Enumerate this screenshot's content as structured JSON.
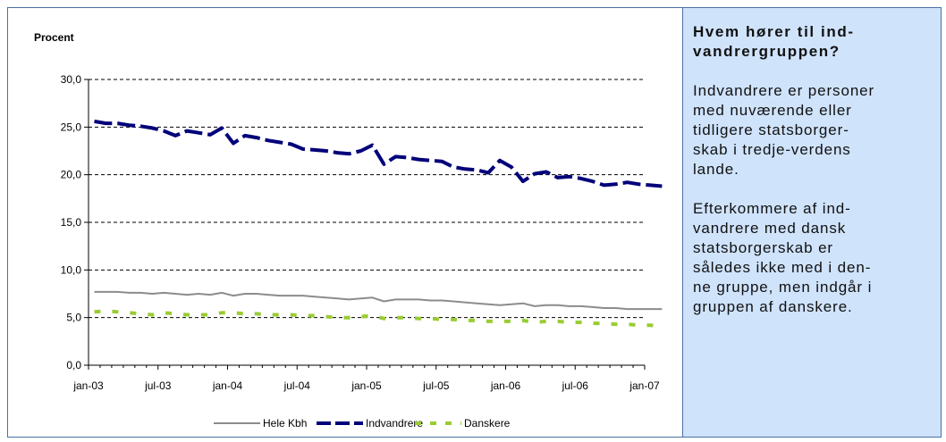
{
  "chart_data": {
    "type": "line",
    "ylabel": "Procent",
    "ylim": [
      0,
      30
    ],
    "y_ticks": [
      "0,0",
      "5,0",
      "10,0",
      "15,0",
      "20,0",
      "25,0",
      "30,0"
    ],
    "x_ticks": [
      "jan-03",
      "jul-03",
      "jan-04",
      "jul-04",
      "jan-05",
      "jul-05",
      "jan-06",
      "jul-06",
      "jan-07"
    ],
    "x_start": "2003-01",
    "grid": "horizontal-dashed",
    "legend_position": "bottom",
    "series": [
      {
        "name": "Hele Kbh",
        "color": "#8c8c8c",
        "style": "solid",
        "values": [
          7.7,
          7.7,
          7.7,
          7.6,
          7.6,
          7.5,
          7.6,
          7.5,
          7.4,
          7.5,
          7.4,
          7.6,
          7.3,
          7.5,
          7.5,
          7.4,
          7.3,
          7.3,
          7.3,
          7.2,
          7.1,
          7.0,
          6.9,
          7.0,
          7.1,
          6.7,
          6.9,
          6.9,
          6.9,
          6.8,
          6.8,
          6.7,
          6.6,
          6.5,
          6.4,
          6.3,
          6.4,
          6.5,
          6.2,
          6.3,
          6.3,
          6.2,
          6.2,
          6.1,
          6.0,
          6.0,
          5.9,
          5.9,
          5.9,
          5.9
        ]
      },
      {
        "name": "Indvandrere",
        "color": "#00007a",
        "style": "dashed",
        "values": [
          25.6,
          25.4,
          25.4,
          25.2,
          25.1,
          24.9,
          24.6,
          24.1,
          24.6,
          24.4,
          24.2,
          24.9,
          23.3,
          24.1,
          23.9,
          23.6,
          23.4,
          23.2,
          22.7,
          22.6,
          22.5,
          22.3,
          22.2,
          22.5,
          23.1,
          21.1,
          21.9,
          21.8,
          21.6,
          21.5,
          21.4,
          20.8,
          20.6,
          20.5,
          20.2,
          21.5,
          20.8,
          19.3,
          20.1,
          20.3,
          19.7,
          19.8,
          19.6,
          19.3,
          18.9,
          19.0,
          19.2,
          19.0,
          18.9,
          18.8
        ]
      },
      {
        "name": "Danskere",
        "color": "#99cc33",
        "style": "dashed",
        "values": [
          5.6,
          5.7,
          5.6,
          5.5,
          5.4,
          5.3,
          5.5,
          5.4,
          5.3,
          5.3,
          5.3,
          5.5,
          5.5,
          5.4,
          5.4,
          5.3,
          5.3,
          5.3,
          5.2,
          5.2,
          5.1,
          5.0,
          5.0,
          5.1,
          5.2,
          4.9,
          5.0,
          5.0,
          4.9,
          4.9,
          4.8,
          4.8,
          4.7,
          4.7,
          4.6,
          4.6,
          4.6,
          4.7,
          4.5,
          4.6,
          4.6,
          4.5,
          4.5,
          4.4,
          4.4,
          4.3,
          4.3,
          4.2,
          4.2,
          4.1
        ]
      }
    ]
  },
  "side": {
    "title_lines": [
      "Hvem hører til ind-",
      "vandrergruppen?"
    ],
    "para1_lines": [
      "Indvandrere er personer",
      "med nuværende eller",
      "tidligere statsborger-",
      "skab i tredje-verdens",
      "lande."
    ],
    "para2_lines": [
      "Efterkommere af ind-",
      "vandrere med dansk",
      "statsborgerskab er",
      "således ikke med i den-",
      "ne gruppe, men indgår i",
      "gruppen af danskere."
    ]
  }
}
